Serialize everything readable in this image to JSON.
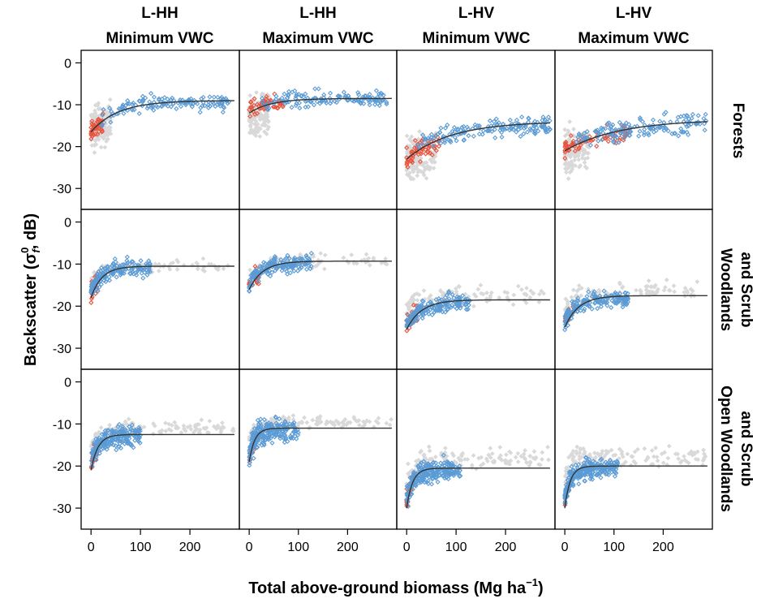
{
  "chart_data": {
    "type": "scatter",
    "xlabel": "Total above-ground biomass (Mg ha",
    "xlabel_unit_sup": "−1",
    "xlabel_close": ")",
    "ylabel": "Backscatter (σ",
    "ylabel_sup": "0",
    "ylabel_sub": "f",
    "ylabel_tail": ", dB)",
    "xlim": [
      -20,
      300
    ],
    "ylim": [
      -35,
      3
    ],
    "x_ticks": [
      0,
      100,
      200
    ],
    "y_ticks": [
      0,
      -10,
      -20,
      -30
    ],
    "x_tick_labels": [
      "0",
      "100",
      "200"
    ],
    "y_tick_labels": [
      "0",
      "-10",
      "-20",
      "-30"
    ],
    "columns": [
      {
        "line1": "L-HH",
        "line2": "Minimum VWC"
      },
      {
        "line1": "L-HH",
        "line2": "Maximum VWC"
      },
      {
        "line1": "L-HV",
        "line2": "Minimum VWC"
      },
      {
        "line1": "L-HV",
        "line2": "Maximum VWC"
      }
    ],
    "rows": [
      {
        "lines": [
          "Forests"
        ]
      },
      {
        "lines": [
          "Woodlands",
          "and Scrub"
        ]
      },
      {
        "lines": [
          "Open Woodlands",
          "and Scrub"
        ]
      }
    ],
    "colors": {
      "blue": "#5b9bd5",
      "red": "#e8553e",
      "grey": "#d9d9d9",
      "line": "#333333"
    },
    "panels": [
      {
        "row": 0,
        "col": 0,
        "curve": {
          "a": -16.5,
          "b": -9.0,
          "k": 55
        },
        "clusters": [
          {
            "color": "grey",
            "n": 140,
            "xmin": 0,
            "xmax": 40,
            "ycenter": -16,
            "spread": 5
          },
          {
            "color": "red",
            "n": 45,
            "xmin": 0,
            "xmax": 25,
            "ycenter": -15,
            "spread": 2
          },
          {
            "color": "blue",
            "n": 140,
            "xmin": 20,
            "xmax": 280,
            "ycenter": -10,
            "spread": 2
          }
        ]
      },
      {
        "row": 0,
        "col": 1,
        "curve": {
          "a": -12,
          "b": -8.5,
          "k": 45
        },
        "clusters": [
          {
            "color": "grey",
            "n": 140,
            "xmin": 0,
            "xmax": 40,
            "ycenter": -14,
            "spread": 5
          },
          {
            "color": "red",
            "n": 55,
            "xmin": 0,
            "xmax": 70,
            "ycenter": -10,
            "spread": 2
          },
          {
            "color": "blue",
            "n": 140,
            "xmin": 20,
            "xmax": 280,
            "ycenter": -8.5,
            "spread": 2
          }
        ]
      },
      {
        "row": 0,
        "col": 2,
        "curve": {
          "a": -23,
          "b": -14,
          "k": 90
        },
        "clusters": [
          {
            "color": "grey",
            "n": 150,
            "xmin": 0,
            "xmax": 60,
            "ycenter": -24,
            "spread": 5
          },
          {
            "color": "red",
            "n": 60,
            "xmin": 0,
            "xmax": 70,
            "ycenter": -21,
            "spread": 2.5
          },
          {
            "color": "blue",
            "n": 160,
            "xmin": 20,
            "xmax": 290,
            "ycenter": -16,
            "spread": 2.5
          }
        ]
      },
      {
        "row": 0,
        "col": 3,
        "curve": {
          "a": -21,
          "b": -13.5,
          "k": 110
        },
        "clusters": [
          {
            "color": "grey",
            "n": 150,
            "xmin": 0,
            "xmax": 50,
            "ycenter": -22,
            "spread": 5
          },
          {
            "color": "red",
            "n": 70,
            "xmin": 0,
            "xmax": 130,
            "ycenter": -19,
            "spread": 2
          },
          {
            "color": "blue",
            "n": 150,
            "xmin": 20,
            "xmax": 290,
            "ycenter": -15,
            "spread": 2.5
          }
        ]
      },
      {
        "row": 1,
        "col": 0,
        "curve": {
          "a": -18,
          "b": -10.5,
          "k": 22
        },
        "clusters": [
          {
            "color": "grey",
            "n": 90,
            "xmin": 0,
            "xmax": 280,
            "ycenter": -10.5,
            "spread": 1.5
          },
          {
            "color": "red",
            "n": 25,
            "xmin": 0,
            "xmax": 15,
            "ycenter": -14,
            "spread": 3
          },
          {
            "color": "blue",
            "n": 170,
            "xmin": 0,
            "xmax": 120,
            "ycenter": -12,
            "spread": 2
          }
        ]
      },
      {
        "row": 1,
        "col": 1,
        "curve": {
          "a": -16,
          "b": -9.3,
          "k": 28
        },
        "clusters": [
          {
            "color": "grey",
            "n": 90,
            "xmin": 0,
            "xmax": 280,
            "ycenter": -9,
            "spread": 1.8
          },
          {
            "color": "red",
            "n": 25,
            "xmin": 0,
            "xmax": 20,
            "ycenter": -11,
            "spread": 3
          },
          {
            "color": "blue",
            "n": 170,
            "xmin": 0,
            "xmax": 130,
            "ycenter": -10.5,
            "spread": 2
          }
        ]
      },
      {
        "row": 1,
        "col": 2,
        "curve": {
          "a": -25.5,
          "b": -18.5,
          "k": 30
        },
        "clusters": [
          {
            "color": "grey",
            "n": 100,
            "xmin": 0,
            "xmax": 280,
            "ycenter": -16,
            "spread": 2.5
          },
          {
            "color": "red",
            "n": 25,
            "xmin": 0,
            "xmax": 25,
            "ycenter": -21,
            "spread": 2
          },
          {
            "color": "blue",
            "n": 180,
            "xmin": 0,
            "xmax": 130,
            "ycenter": -20.5,
            "spread": 2
          }
        ]
      },
      {
        "row": 1,
        "col": 3,
        "curve": {
          "a": -25,
          "b": -17.5,
          "k": 28
        },
        "clusters": [
          {
            "color": "grey",
            "n": 100,
            "xmin": 0,
            "xmax": 280,
            "ycenter": -15.5,
            "spread": 2.5
          },
          {
            "color": "red",
            "n": 20,
            "xmin": 0,
            "xmax": 20,
            "ycenter": -19,
            "spread": 2
          },
          {
            "color": "blue",
            "n": 180,
            "xmin": 0,
            "xmax": 130,
            "ycenter": -19.5,
            "spread": 2
          }
        ]
      },
      {
        "row": 2,
        "col": 0,
        "curve": {
          "a": -21,
          "b": -12.5,
          "k": 14
        },
        "clusters": [
          {
            "color": "grey",
            "n": 120,
            "xmin": 0,
            "xmax": 290,
            "ycenter": -9.5,
            "spread": 1.5
          },
          {
            "color": "red",
            "n": 25,
            "xmin": 0,
            "xmax": 12,
            "ycenter": -16,
            "spread": 2.5
          },
          {
            "color": "blue",
            "n": 220,
            "xmin": 0,
            "xmax": 100,
            "ycenter": -13.5,
            "spread": 2.5
          }
        ]
      },
      {
        "row": 2,
        "col": 1,
        "curve": {
          "a": -19,
          "b": -11,
          "k": 11
        },
        "clusters": [
          {
            "color": "grey",
            "n": 120,
            "xmin": 0,
            "xmax": 290,
            "ycenter": -8.5,
            "spread": 1.5
          },
          {
            "color": "red",
            "n": 15,
            "xmin": 0,
            "xmax": 10,
            "ycenter": -14,
            "spread": 2.5
          },
          {
            "color": "blue",
            "n": 220,
            "xmin": 0,
            "xmax": 100,
            "ycenter": -13,
            "spread": 3
          }
        ]
      },
      {
        "row": 2,
        "col": 2,
        "curve": {
          "a": -30,
          "b": -20.5,
          "k": 12
        },
        "clusters": [
          {
            "color": "grey",
            "n": 130,
            "xmin": 0,
            "xmax": 290,
            "ycenter": -16,
            "spread": 2.5
          },
          {
            "color": "red",
            "n": 25,
            "xmin": 0,
            "xmax": 15,
            "ycenter": -24,
            "spread": 2
          },
          {
            "color": "blue",
            "n": 250,
            "xmin": 0,
            "xmax": 110,
            "ycenter": -23,
            "spread": 2.5
          }
        ]
      },
      {
        "row": 2,
        "col": 3,
        "curve": {
          "a": -30,
          "b": -20,
          "k": 11
        },
        "clusters": [
          {
            "color": "grey",
            "n": 130,
            "xmin": 0,
            "xmax": 290,
            "ycenter": -15.5,
            "spread": 2.5
          },
          {
            "color": "red",
            "n": 15,
            "xmin": 0,
            "xmax": 10,
            "ycenter": -23,
            "spread": 2
          },
          {
            "color": "blue",
            "n": 250,
            "xmin": 0,
            "xmax": 110,
            "ycenter": -22.5,
            "spread": 2.5
          }
        ]
      }
    ]
  }
}
